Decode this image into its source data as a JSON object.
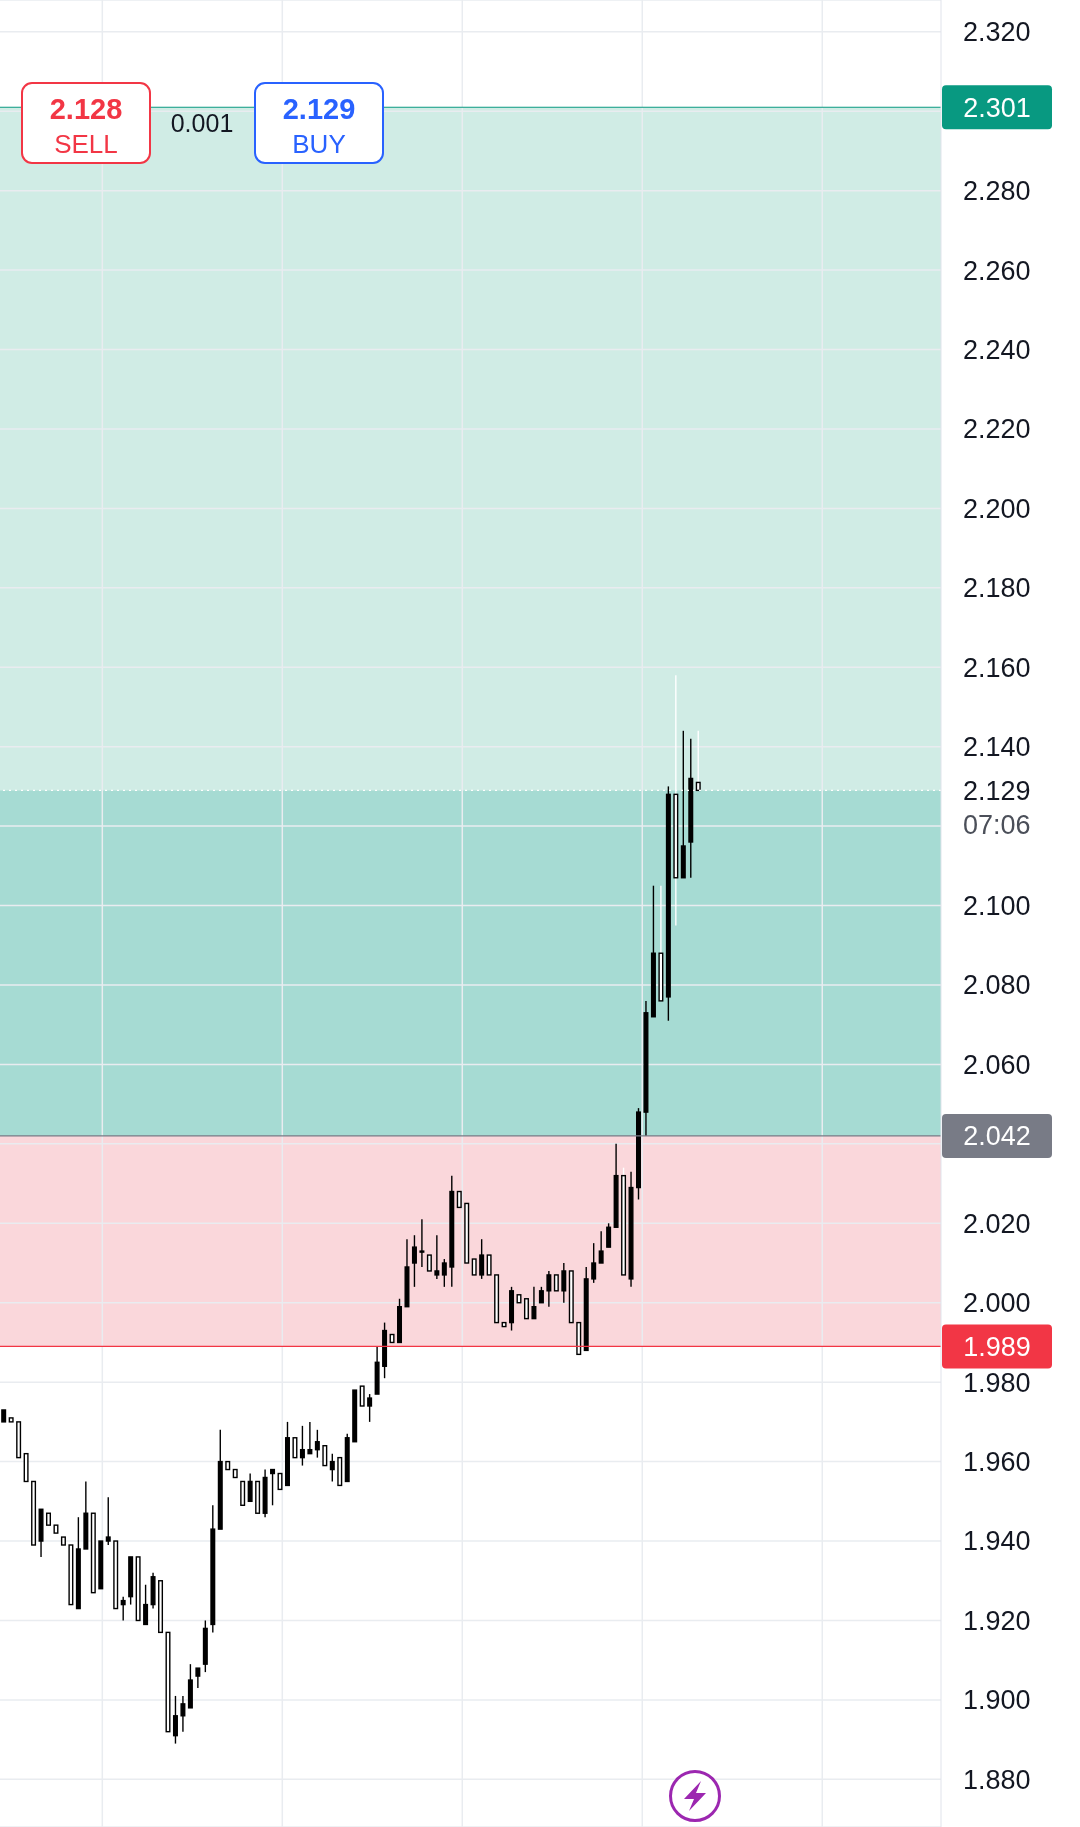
{
  "chart_data": {
    "type": "candlestick",
    "categories": [
      null,
      null,
      null,
      null,
      null,
      null,
      null,
      null,
      null,
      null,
      null,
      null,
      null,
      null,
      null,
      null,
      null,
      null,
      null,
      null,
      null,
      null,
      null,
      null,
      null,
      null,
      null,
      null,
      null,
      null,
      null,
      null,
      null,
      null,
      null,
      null,
      null,
      null,
      null,
      null,
      null,
      null,
      null,
      null,
      null,
      null,
      null,
      null,
      null,
      null,
      null,
      null,
      null,
      null,
      null,
      null,
      null,
      null,
      null,
      null,
      null,
      null,
      null,
      null,
      null,
      null,
      null,
      null,
      null,
      null,
      null,
      null,
      null,
      null,
      null,
      null,
      null,
      null,
      null,
      null,
      null,
      null,
      null,
      null,
      null,
      null,
      null,
      null,
      null,
      null,
      null,
      null,
      null,
      null,
      null,
      null,
      null,
      null,
      null,
      null,
      null,
      null,
      null,
      null,
      null,
      null,
      null,
      null,
      null,
      null,
      null,
      null,
      null,
      null,
      null,
      null,
      null,
      null,
      null,
      null,
      null,
      null,
      null,
      null,
      null,
      null
    ],
    "ohlc": [
      [
        1.97,
        1.973,
        1.97,
        1.973
      ],
      [
        1.971,
        1.971,
        1.97,
        1.97
      ],
      [
        1.97,
        1.97,
        1.961,
        1.961
      ],
      [
        1.962,
        1.962,
        1.955,
        1.955
      ],
      [
        1.955,
        1.955,
        1.939,
        1.939
      ],
      [
        1.94,
        1.948,
        1.936,
        1.948
      ],
      [
        1.947,
        1.947,
        1.944,
        1.944
      ],
      [
        1.944,
        1.944,
        1.942,
        1.942
      ],
      [
        1.941,
        1.941,
        1.939,
        1.939
      ],
      [
        1.939,
        1.939,
        1.924,
        1.924
      ],
      [
        1.923,
        1.946,
        1.923,
        1.938
      ],
      [
        1.938,
        1.955,
        1.938,
        1.947
      ],
      [
        1.947,
        1.947,
        1.927,
        1.927
      ],
      [
        1.928,
        1.94,
        1.928,
        1.94
      ],
      [
        1.94,
        1.951,
        1.939,
        1.941
      ],
      [
        1.94,
        1.94,
        1.923,
        1.923
      ],
      [
        1.924,
        1.926,
        1.92,
        1.925
      ],
      [
        1.926,
        1.936,
        1.924,
        1.936
      ],
      [
        1.936,
        1.936,
        1.92,
        1.92
      ],
      [
        1.919,
        1.929,
        1.919,
        1.924
      ],
      [
        1.924,
        1.932,
        1.923,
        1.931
      ],
      [
        1.93,
        1.93,
        1.917,
        1.917
      ],
      [
        1.917,
        1.917,
        1.892,
        1.892
      ],
      [
        1.891,
        1.901,
        1.889,
        1.896
      ],
      [
        1.896,
        1.901,
        1.892,
        1.899
      ],
      [
        1.898,
        1.909,
        1.898,
        1.905
      ],
      [
        1.906,
        1.908,
        1.903,
        1.908
      ],
      [
        1.909,
        1.92,
        1.907,
        1.918
      ],
      [
        1.919,
        1.949,
        1.917,
        1.943
      ],
      [
        1.943,
        1.968,
        1.943,
        1.96
      ],
      [
        1.96,
        1.96,
        1.958,
        1.958
      ],
      [
        1.958,
        1.958,
        1.956,
        1.956
      ],
      [
        1.955,
        1.955,
        1.949,
        1.949
      ],
      [
        1.95,
        1.957,
        1.95,
        1.955
      ],
      [
        1.955,
        1.955,
        1.947,
        1.947
      ],
      [
        1.947,
        1.958,
        1.946,
        1.956
      ],
      [
        1.957,
        1.958,
        1.949,
        1.958
      ],
      [
        1.957,
        1.957,
        1.953,
        1.953
      ],
      [
        1.954,
        1.97,
        1.954,
        1.966
      ],
      [
        1.966,
        1.966,
        1.961,
        1.961
      ],
      [
        1.961,
        1.969,
        1.959,
        1.963
      ],
      [
        1.962,
        1.97,
        1.962,
        1.963
      ],
      [
        1.963,
        1.968,
        1.961,
        1.965
      ],
      [
        1.964,
        1.964,
        1.959,
        1.959
      ],
      [
        1.958,
        1.962,
        1.955,
        1.96
      ],
      [
        1.961,
        1.961,
        1.954,
        1.954
      ],
      [
        1.955,
        1.967,
        1.955,
        1.966
      ],
      [
        1.965,
        1.978,
        1.965,
        1.978
      ],
      [
        1.979,
        1.979,
        1.974,
        1.974
      ],
      [
        1.974,
        1.977,
        1.97,
        1.976
      ],
      [
        1.977,
        1.989,
        1.977,
        1.985
      ],
      [
        1.984,
        1.995,
        1.981,
        1.993
      ],
      [
        1.992,
        1.992,
        1.99,
        1.99
      ],
      [
        1.99,
        2.001,
        1.99,
        1.999
      ],
      [
        1.999,
        2.016,
        1.999,
        2.009
      ],
      [
        2.01,
        2.017,
        2.004,
        2.014
      ],
      [
        2.013,
        2.021,
        2.009,
        2.013
      ],
      [
        2.012,
        2.012,
        2.008,
        2.008
      ],
      [
        2.007,
        2.017,
        2.006,
        2.008
      ],
      [
        2.007,
        2.011,
        2.004,
        2.01
      ],
      [
        2.009,
        2.032,
        2.004,
        2.028
      ],
      [
        2.028,
        2.028,
        2.024,
        2.024
      ],
      [
        2.025,
        2.025,
        2.01,
        2.01
      ],
      [
        2.011,
        2.011,
        2.007,
        2.007
      ],
      [
        2.007,
        2.016,
        2.006,
        2.012
      ],
      [
        2.012,
        2.012,
        2.007,
        2.007
      ],
      [
        2.007,
        2.007,
        1.995,
        1.995
      ],
      [
        1.995,
        1.995,
        1.994,
        1.994
      ],
      [
        1.995,
        2.004,
        1.993,
        2.003
      ],
      [
        2.002,
        2.002,
        2.0,
        2.0
      ],
      [
        2.001,
        2.001,
        1.996,
        1.996
      ],
      [
        1.996,
        2.004,
        1.996,
        1.999
      ],
      [
        2.0,
        2.004,
        2.0,
        2.003
      ],
      [
        2.003,
        2.008,
        1.999,
        2.007
      ],
      [
        2.007,
        2.007,
        2.003,
        2.003
      ],
      [
        2.003,
        2.01,
        2.0,
        2.008
      ],
      [
        2.008,
        2.008,
        1.995,
        1.995
      ],
      [
        1.995,
        1.995,
        1.987,
        1.987
      ],
      [
        1.988,
        2.009,
        1.988,
        2.006
      ],
      [
        2.006,
        2.015,
        2.005,
        2.01
      ],
      [
        2.01,
        2.018,
        2.01,
        2.013
      ],
      [
        2.014,
        2.02,
        2.014,
        2.019
      ],
      [
        2.019,
        2.04,
        2.019,
        2.032
      ],
      [
        2.032,
        2.034,
        2.007,
        2.007
      ],
      [
        2.006,
        2.033,
        2.004,
        2.029
      ],
      [
        2.029,
        2.049,
        2.026,
        2.048
      ],
      [
        2.048,
        2.076,
        2.042,
        2.073
      ],
      [
        2.072,
        2.105,
        2.072,
        2.088
      ],
      [
        2.088,
        2.105,
        2.076,
        2.076
      ],
      [
        2.077,
        2.13,
        2.071,
        2.128
      ],
      [
        2.128,
        2.158,
        2.095,
        2.107
      ],
      [
        2.107,
        2.144,
        2.107,
        2.115
      ],
      [
        2.116,
        2.142,
        2.107,
        2.132
      ],
      [
        2.131,
        2.144,
        2.129,
        2.129
      ],
      null,
      null,
      null,
      null,
      null,
      null,
      null,
      null,
      null,
      null,
      null,
      null,
      null,
      null,
      null,
      null,
      null,
      null,
      null,
      null,
      null,
      null,
      null,
      null,
      null,
      null,
      null,
      null,
      null,
      null,
      null,
      null
    ],
    "color": "#000000",
    "ylim": [
      1.868,
      2.328
    ],
    "yticks": [
      {
        "value": 1.88,
        "label": "1.880"
      },
      {
        "value": 1.9,
        "label": "1.900"
      },
      {
        "value": 1.92,
        "label": "1.920"
      },
      {
        "value": 1.94,
        "label": "1.940"
      },
      {
        "value": 1.96,
        "label": "1.960"
      },
      {
        "value": 1.98,
        "label": "1.980"
      },
      {
        "value": 2.0,
        "label": "2.000"
      },
      {
        "value": 2.02,
        "label": "2.020"
      },
      {
        "value": 2.04,
        "label": null
      },
      {
        "value": 2.06,
        "label": "2.060"
      },
      {
        "value": 2.08,
        "label": "2.080"
      },
      {
        "value": 2.1,
        "label": "2.100"
      },
      {
        "value": 2.12,
        "label": null
      },
      {
        "value": 2.14,
        "label": "2.140"
      },
      {
        "value": 2.16,
        "label": "2.160"
      },
      {
        "value": 2.18,
        "label": "2.180"
      },
      {
        "value": 2.2,
        "label": "2.200"
      },
      {
        "value": 2.22,
        "label": "2.220"
      },
      {
        "value": 2.24,
        "label": "2.240"
      },
      {
        "value": 2.26,
        "label": "2.260"
      },
      {
        "value": 2.28,
        "label": "2.280"
      },
      {
        "value": 2.3,
        "label": null
      },
      {
        "value": 2.32,
        "label": "2.320"
      }
    ],
    "tick_labels": "y",
    "grid": true,
    "bands": [
      {
        "axis": "y",
        "from": 2.042,
        "to": 2.301,
        "color": "#d0ece5"
      },
      {
        "axis": "y",
        "from": 2.042,
        "to": 2.129,
        "color": "#a6dbd3"
      },
      {
        "axis": "y",
        "from": 1.989,
        "to": 2.042,
        "color": "#fad7db"
      }
    ],
    "ref_lines": [
      {
        "axis": "y",
        "value": 2.301,
        "label": "2.301",
        "color": "#089981"
      },
      {
        "axis": "y",
        "value": 2.042,
        "label": "2.042",
        "color": "#787b86"
      },
      {
        "axis": "y",
        "value": 1.989,
        "label": "1.989",
        "color": "#f23645"
      },
      {
        "axis": "y",
        "value": 2.129,
        "label": "2.129",
        "color": "#ffffff",
        "line_style": "dotted"
      }
    ],
    "annotations": [
      "2.128",
      "SELL",
      "0.001",
      "2.129",
      "BUY",
      "07:06"
    ]
  }
}
